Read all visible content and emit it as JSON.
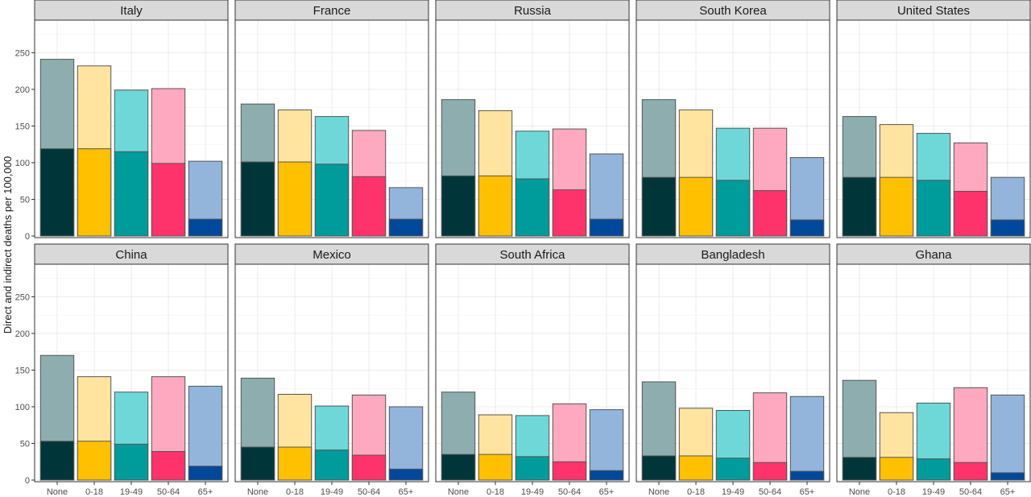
{
  "chart_data": {
    "type": "bar",
    "ylabel": "Direct and indirect deaths per 100,000",
    "categories": [
      "None",
      "0-18",
      "19-49",
      "50-64",
      "65+"
    ],
    "ylim": [
      0,
      290
    ],
    "yticks": [
      0,
      50,
      100,
      150,
      200,
      250
    ],
    "ytick_labels": [
      "0",
      "50",
      "100",
      "150",
      "200",
      "250"
    ],
    "grid": true,
    "legend": "none",
    "colors": {
      "dark": [
        "#00363a",
        "#ffc000",
        "#009b9b",
        "#ff336b",
        "#00489c"
      ],
      "light": [
        "#8eadaf",
        "#ffe49f",
        "#6ed8d8",
        "#ffa9c0",
        "#93b5dc"
      ],
      "outline": "#555555",
      "strip_fill": "#d9d9d9",
      "grid": "#ebebeb"
    },
    "panels": [
      {
        "title": "Italy",
        "total": [
          241,
          232,
          199,
          201,
          102
        ],
        "direct": [
          119,
          119,
          115,
          99,
          23
        ]
      },
      {
        "title": "France",
        "total": [
          180,
          172,
          163,
          144,
          66
        ],
        "direct": [
          101,
          101,
          98,
          81,
          23
        ]
      },
      {
        "title": "Russia",
        "total": [
          186,
          171,
          143,
          146,
          112
        ],
        "direct": [
          82,
          82,
          78,
          63,
          23
        ]
      },
      {
        "title": "South Korea",
        "total": [
          186,
          172,
          147,
          147,
          107
        ],
        "direct": [
          80,
          80,
          76,
          62,
          22
        ]
      },
      {
        "title": "United States",
        "total": [
          163,
          152,
          140,
          127,
          80
        ],
        "direct": [
          80,
          80,
          76,
          61,
          22
        ]
      },
      {
        "title": "China",
        "total": [
          170,
          141,
          120,
          141,
          128
        ],
        "direct": [
          53,
          53,
          49,
          39,
          19
        ]
      },
      {
        "title": "Mexico",
        "total": [
          139,
          117,
          101,
          116,
          100
        ],
        "direct": [
          45,
          45,
          41,
          34,
          15
        ]
      },
      {
        "title": "South Africa",
        "total": [
          120,
          89,
          88,
          104,
          96
        ],
        "direct": [
          35,
          35,
          32,
          25,
          13
        ]
      },
      {
        "title": "Bangladesh",
        "total": [
          134,
          98,
          95,
          119,
          114
        ],
        "direct": [
          33,
          33,
          30,
          24,
          12
        ]
      },
      {
        "title": "Ghana",
        "total": [
          136,
          92,
          105,
          126,
          116
        ],
        "direct": [
          31,
          31,
          29,
          24,
          10
        ]
      }
    ]
  }
}
